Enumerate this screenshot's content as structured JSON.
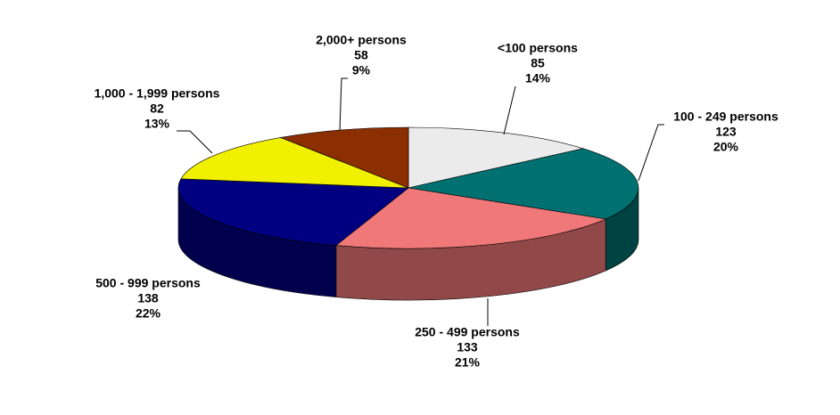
{
  "chart_data": {
    "type": "pie3d",
    "categories": [
      "<100 persons",
      "100 - 249 persons",
      "250 - 499 persons",
      "500 - 999 persons",
      "1,000 - 1,999 persons",
      "2,000+ persons"
    ],
    "values": [
      85,
      123,
      133,
      138,
      82,
      58
    ],
    "percent_labels": [
      "14%",
      "20%",
      "21%",
      "22%",
      "13%",
      "9%"
    ],
    "colors": [
      "#ebebeb",
      "#007070",
      "#f07878",
      "#000080",
      "#f0f000",
      "#8b2e00"
    ]
  }
}
